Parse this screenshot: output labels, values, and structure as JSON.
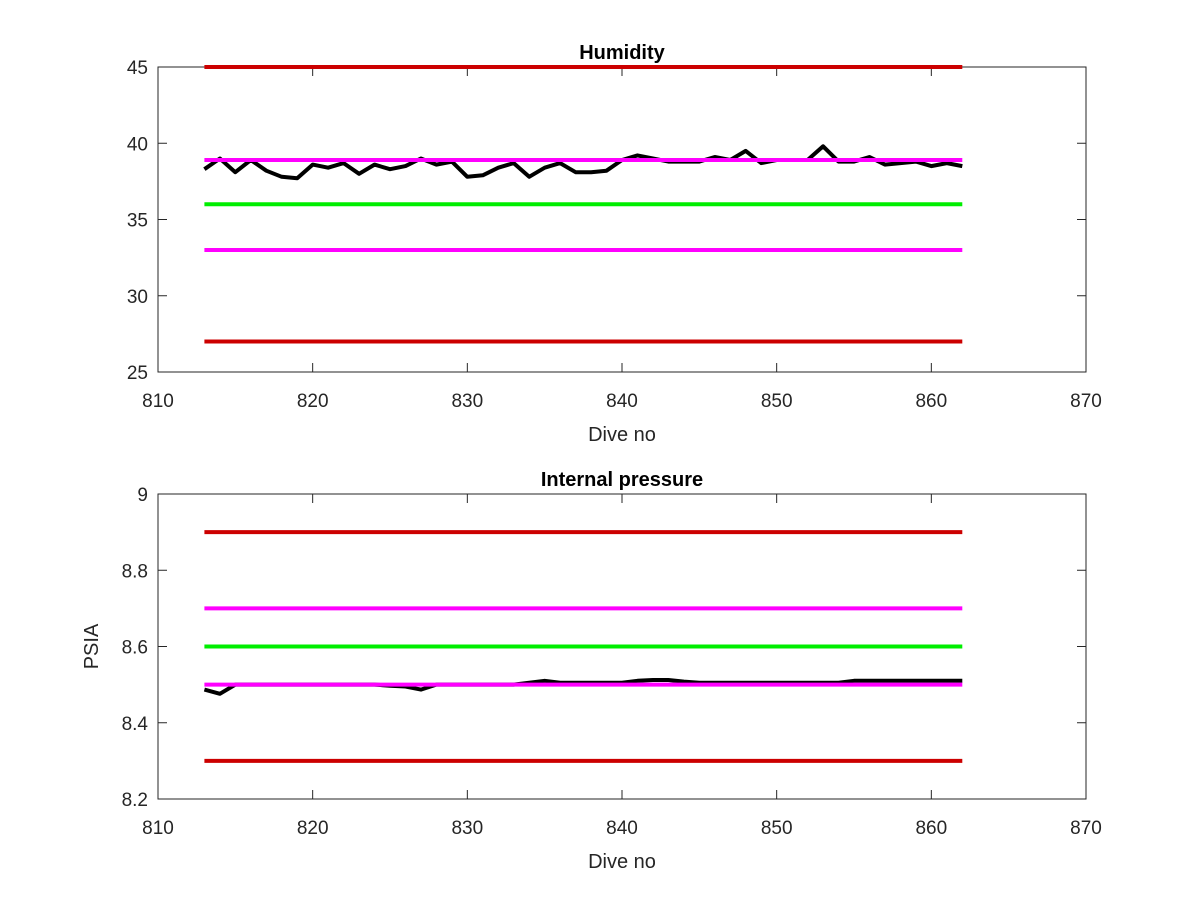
{
  "chart_data": [
    {
      "type": "line",
      "title": "Humidity",
      "xlabel": "Dive no",
      "ylabel": "",
      "xlim": [
        810,
        870
      ],
      "ylim": [
        25,
        45
      ],
      "xticks": [
        "810",
        "820",
        "830",
        "840",
        "850",
        "860",
        "870"
      ],
      "yticks": [
        "25",
        "30",
        "35",
        "40",
        "45"
      ],
      "grid": false,
      "legend": "none",
      "series": [
        {
          "color": "#000000",
          "width": 4,
          "x": [
            813,
            814,
            815,
            816,
            817,
            818,
            819,
            820,
            821,
            822,
            823,
            824,
            825,
            826,
            827,
            828,
            829,
            830,
            831,
            832,
            833,
            834,
            835,
            836,
            837,
            838,
            839,
            840,
            841,
            842,
            843,
            844,
            845,
            846,
            847,
            848,
            849,
            850,
            851,
            852,
            853,
            854,
            855,
            856,
            857,
            858,
            859,
            860,
            861,
            862
          ],
          "values": [
            38.3,
            39.0,
            38.1,
            38.9,
            38.2,
            37.8,
            37.7,
            38.6,
            38.4,
            38.7,
            38.0,
            38.6,
            38.3,
            38.5,
            39.0,
            38.6,
            38.8,
            37.8,
            37.9,
            38.4,
            38.7,
            37.8,
            38.4,
            38.7,
            38.1,
            38.1,
            38.2,
            38.9,
            39.2,
            39.0,
            38.8,
            38.8,
            38.8,
            39.1,
            38.9,
            39.5,
            38.7,
            38.9,
            38.9,
            38.9,
            39.8,
            38.8,
            38.8,
            39.1,
            38.6,
            38.7,
            38.8,
            38.5,
            38.7,
            38.5
          ]
        },
        {
          "color": "#cc0000",
          "width": 4,
          "x": [
            813,
            862
          ],
          "values": [
            45,
            45
          ]
        },
        {
          "color": "#ff00ff",
          "width": 4,
          "x": [
            813,
            862
          ],
          "values": [
            38.9,
            38.9
          ]
        },
        {
          "color": "#00ee00",
          "width": 4,
          "x": [
            813,
            862
          ],
          "values": [
            36,
            36
          ]
        },
        {
          "color": "#ff00ff",
          "width": 4,
          "x": [
            813,
            862
          ],
          "values": [
            33,
            33
          ]
        },
        {
          "color": "#cc0000",
          "width": 4,
          "x": [
            813,
            862
          ],
          "values": [
            27,
            27
          ]
        }
      ]
    },
    {
      "type": "line",
      "title": "Internal pressure",
      "xlabel": "Dive no",
      "ylabel": "PSIA",
      "xlim": [
        810,
        870
      ],
      "ylim": [
        8.2,
        9.0
      ],
      "xticks": [
        "810",
        "820",
        "830",
        "840",
        "850",
        "860",
        "870"
      ],
      "yticks": [
        "8.2",
        "8.4",
        "8.6",
        "8.8",
        "9"
      ],
      "grid": false,
      "legend": "none",
      "series": [
        {
          "color": "#cc0000",
          "width": 4,
          "x": [
            813,
            862
          ],
          "values": [
            8.9,
            8.9
          ]
        },
        {
          "color": "#ff00ff",
          "width": 4,
          "x": [
            813,
            862
          ],
          "values": [
            8.7,
            8.7
          ]
        },
        {
          "color": "#00ee00",
          "width": 4,
          "x": [
            813,
            862
          ],
          "values": [
            8.6,
            8.6
          ]
        },
        {
          "color": "#cc0000",
          "width": 4,
          "x": [
            813,
            862
          ],
          "values": [
            8.3,
            8.3
          ]
        },
        {
          "color": "#000000",
          "width": 4,
          "x": [
            813,
            814,
            815,
            816,
            817,
            818,
            819,
            820,
            821,
            822,
            823,
            824,
            825,
            826,
            827,
            828,
            829,
            830,
            831,
            832,
            833,
            834,
            835,
            836,
            837,
            838,
            839,
            840,
            841,
            842,
            843,
            844,
            845,
            846,
            847,
            848,
            849,
            850,
            851,
            852,
            853,
            854,
            855,
            856,
            857,
            858,
            859,
            860,
            861,
            862
          ],
          "values": [
            8.487,
            8.476,
            8.5,
            8.5,
            8.5,
            8.5,
            8.5,
            8.5,
            8.5,
            8.5,
            8.5,
            8.5,
            8.497,
            8.495,
            8.487,
            8.5,
            8.5,
            8.5,
            8.5,
            8.5,
            8.5,
            8.505,
            8.51,
            8.505,
            8.505,
            8.505,
            8.505,
            8.505,
            8.51,
            8.512,
            8.512,
            8.508,
            8.505,
            8.505,
            8.505,
            8.505,
            8.505,
            8.505,
            8.505,
            8.505,
            8.505,
            8.505,
            8.51,
            8.51,
            8.51,
            8.51,
            8.51,
            8.51,
            8.51,
            8.51
          ]
        },
        {
          "color": "#ff00ff",
          "width": 4,
          "x": [
            813,
            862
          ],
          "values": [
            8.5,
            8.5
          ]
        }
      ]
    }
  ]
}
